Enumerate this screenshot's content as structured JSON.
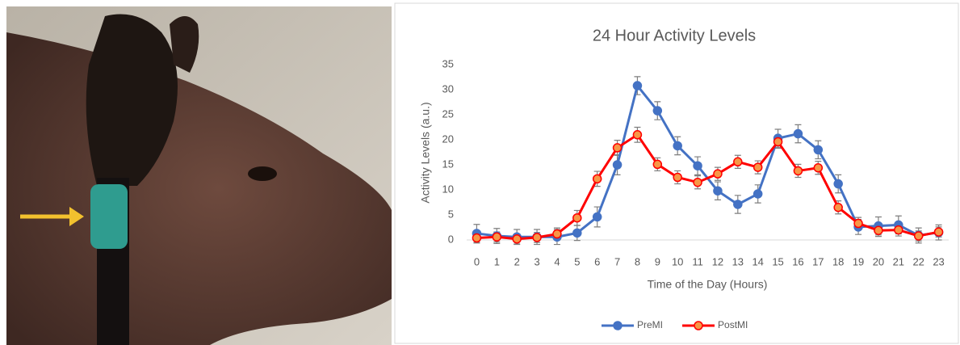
{
  "chart_data": {
    "type": "line",
    "title": "24 Hour Activity Levels",
    "x_label": "Time of the Day (Hours)",
    "y_label": "Activity Levels (a.u.)",
    "x": [
      0,
      1,
      2,
      3,
      4,
      5,
      6,
      7,
      8,
      9,
      10,
      11,
      12,
      13,
      14,
      15,
      16,
      17,
      18,
      19,
      20,
      21,
      22,
      23
    ],
    "xlim": [
      -0.5,
      23.5
    ],
    "xticks": [
      0,
      1,
      2,
      3,
      4,
      5,
      6,
      7,
      8,
      9,
      10,
      11,
      12,
      13,
      14,
      15,
      16,
      17,
      18,
      19,
      20,
      21,
      22,
      23
    ],
    "ylim": [
      0,
      35
    ],
    "yticks": [
      0,
      5,
      10,
      15,
      20,
      25,
      30,
      35
    ],
    "grid": false,
    "legend": "bottom",
    "error_color": "#7f7f7f",
    "series": [
      {
        "name": "PreMI",
        "color": "#4472c4",
        "marker_color": "#4472c4",
        "values": [
          1.3,
          0.8,
          0.6,
          0.6,
          0.6,
          1.4,
          4.6,
          15,
          30.8,
          25.8,
          18.8,
          14.8,
          9.8,
          7.1,
          9.2,
          20.3,
          21.2,
          18,
          11.2,
          2.6,
          2.8,
          3,
          0.9,
          1.5
        ],
        "errors": [
          1.8,
          1.5,
          1.5,
          1.5,
          1.5,
          1.5,
          2,
          2,
          1.8,
          1.8,
          1.8,
          1.8,
          1.8,
          1.8,
          1.8,
          1.8,
          1.8,
          1.8,
          1.8,
          1.5,
          1.8,
          1.8,
          1.5,
          1.5
        ]
      },
      {
        "name": "PostMI",
        "color": "#ff0000",
        "marker_color": "#f79646",
        "values": [
          0.4,
          0.6,
          0.2,
          0.5,
          1.2,
          4.4,
          12.2,
          18.4,
          21,
          15.1,
          12.5,
          11.5,
          13.2,
          15.6,
          14.5,
          19.6,
          13.8,
          14.4,
          6.5,
          3.3,
          1.9,
          2,
          0.8,
          1.6
        ],
        "errors": [
          1,
          1,
          1,
          1,
          1.2,
          1.5,
          1.5,
          1.5,
          1.5,
          1.3,
          1.3,
          1.3,
          1.3,
          1.3,
          1.3,
          1.3,
          1.3,
          1.3,
          1.3,
          1.2,
          1.2,
          1.2,
          1,
          1
        ]
      }
    ]
  }
}
